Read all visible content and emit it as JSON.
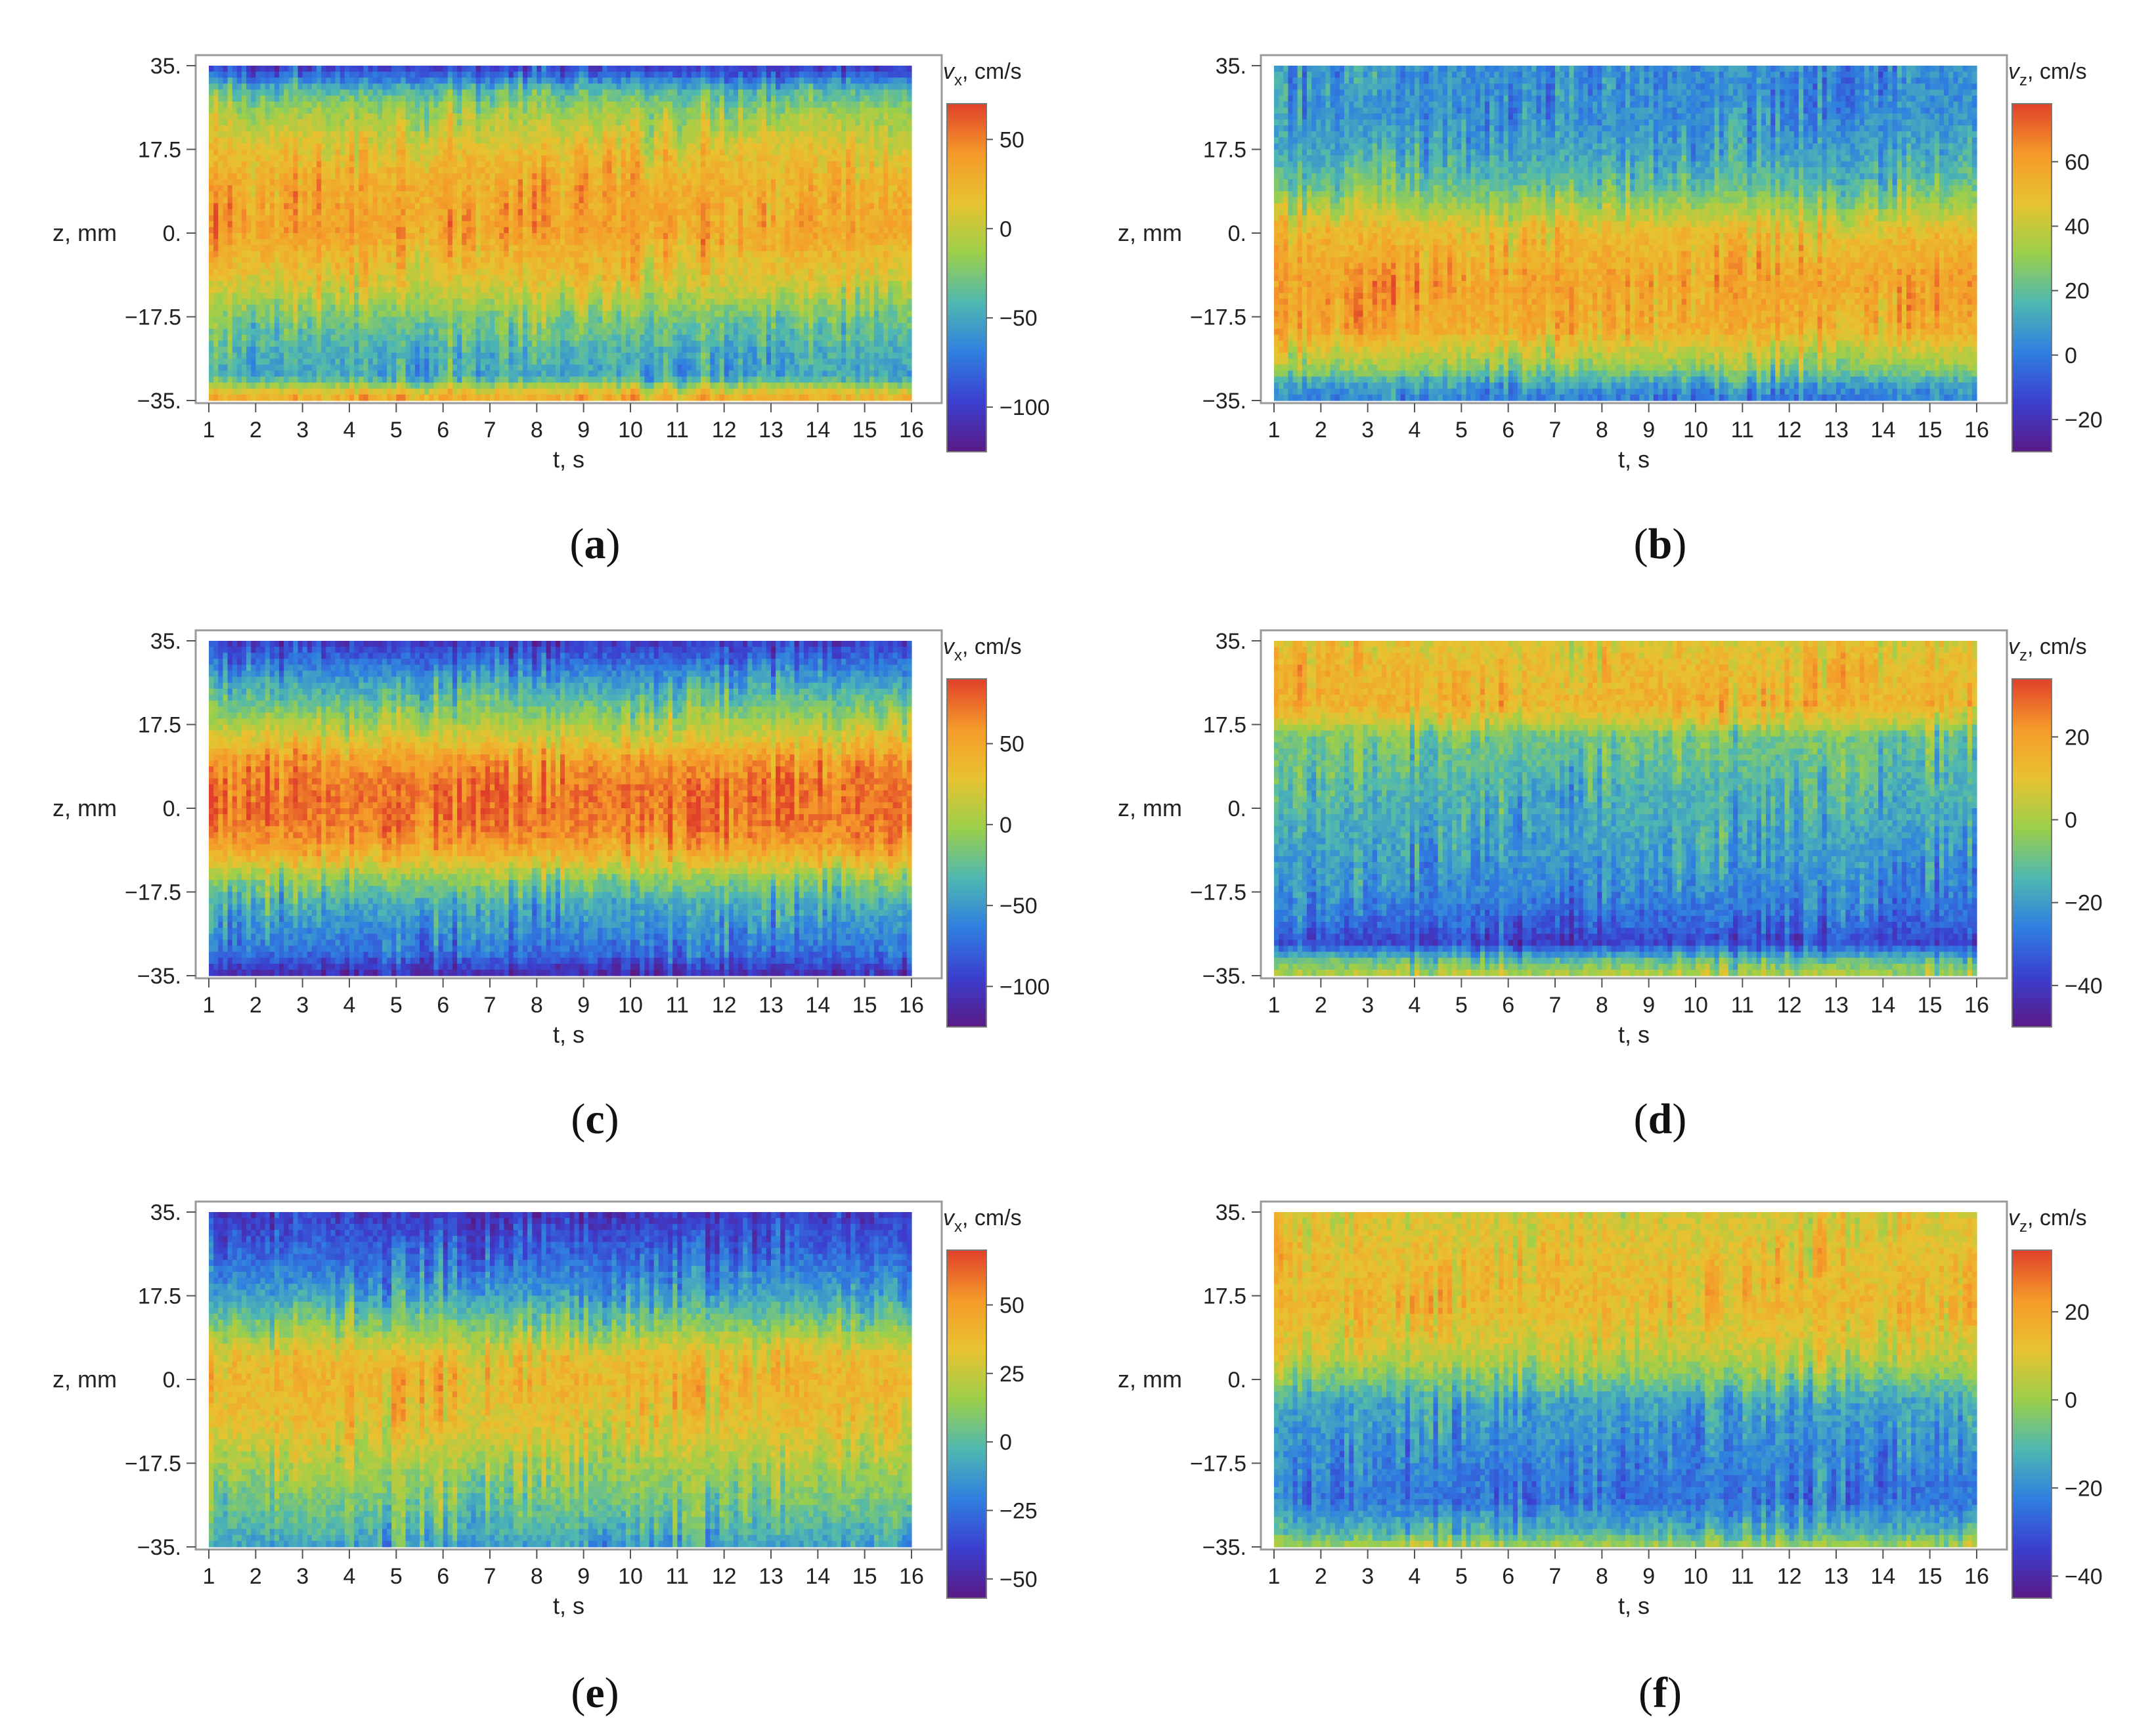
{
  "figure": {
    "captions": [
      "a",
      "b",
      "c",
      "d",
      "e",
      "f"
    ]
  },
  "colormap": {
    "stops": [
      "#5a1a86",
      "#3b3fcf",
      "#2f7fe0",
      "#4fb8b0",
      "#9ccf4a",
      "#e8c230",
      "#f59a2a",
      "#e0402a"
    ]
  },
  "chart_data": [
    {
      "id": "a",
      "type": "heatmap",
      "xlabel": "t, s",
      "ylabel": "z, mm",
      "x_range": [
        1,
        16
      ],
      "y_range": [
        -35,
        35
      ],
      "x_ticks": [
        "1",
        "2",
        "3",
        "4",
        "5",
        "6",
        "7",
        "8",
        "9",
        "10",
        "11",
        "12",
        "13",
        "14",
        "15",
        "16"
      ],
      "y_ticks": [
        "35.",
        "17.5",
        "0.",
        "−17.5",
        "−35."
      ],
      "colorbar_label_var": "v",
      "colorbar_label_sub": "x",
      "colorbar_label_unit": ", cm/s",
      "colorbar_range": [
        -125,
        70
      ],
      "colorbar_ticks": [
        "50",
        "0",
        "−50",
        "−100"
      ],
      "colorbar_tick_values": [
        50,
        0,
        -50,
        -100
      ],
      "profile": [
        [
          -35,
          35
        ],
        [
          -33,
          10
        ],
        [
          -30,
          -50
        ],
        [
          -25,
          -45
        ],
        [
          -17.5,
          -25
        ],
        [
          -10,
          10
        ],
        [
          0,
          35
        ],
        [
          10,
          30
        ],
        [
          17.5,
          15
        ],
        [
          25,
          -10
        ],
        [
          30,
          -40
        ],
        [
          33,
          -80
        ],
        [
          35,
          -100
        ]
      ]
    },
    {
      "id": "b",
      "type": "heatmap",
      "xlabel": "t, s",
      "ylabel": "z, mm",
      "x_range": [
        1,
        16
      ],
      "y_range": [
        -35,
        35
      ],
      "x_ticks": [
        "1",
        "2",
        "3",
        "4",
        "5",
        "6",
        "7",
        "8",
        "9",
        "10",
        "11",
        "12",
        "13",
        "14",
        "15",
        "16"
      ],
      "y_ticks": [
        "35.",
        "17.5",
        "0.",
        "−17.5",
        "−35."
      ],
      "colorbar_label_var": "v",
      "colorbar_label_sub": "z",
      "colorbar_label_unit": ", cm/s",
      "colorbar_range": [
        -30,
        78
      ],
      "colorbar_ticks": [
        "60",
        "40",
        "20",
        "0",
        "−20"
      ],
      "colorbar_tick_values": [
        60,
        40,
        20,
        0,
        -20
      ],
      "profile": [
        [
          -35,
          0
        ],
        [
          -32,
          8
        ],
        [
          -28,
          30
        ],
        [
          -20,
          55
        ],
        [
          -10,
          58
        ],
        [
          0,
          50
        ],
        [
          5,
          35
        ],
        [
          10,
          20
        ],
        [
          17.5,
          10
        ],
        [
          25,
          5
        ],
        [
          35,
          5
        ]
      ]
    },
    {
      "id": "c",
      "type": "heatmap",
      "xlabel": "t, s",
      "ylabel": "z, mm",
      "x_range": [
        1,
        16
      ],
      "y_range": [
        -35,
        35
      ],
      "x_ticks": [
        "1",
        "2",
        "3",
        "4",
        "5",
        "6",
        "7",
        "8",
        "9",
        "10",
        "11",
        "12",
        "13",
        "14",
        "15",
        "16"
      ],
      "y_ticks": [
        "35.",
        "17.5",
        "0.",
        "−17.5",
        "−35."
      ],
      "colorbar_label_var": "v",
      "colorbar_label_sub": "x",
      "colorbar_label_unit": ", cm/s",
      "colorbar_range": [
        -125,
        90
      ],
      "colorbar_ticks": [
        "50",
        "0",
        "−50",
        "−100"
      ],
      "colorbar_tick_values": [
        50,
        0,
        -50,
        -100
      ],
      "profile": [
        [
          -35,
          -110
        ],
        [
          -30,
          -70
        ],
        [
          -20,
          -40
        ],
        [
          -15,
          -10
        ],
        [
          -10,
          40
        ],
        [
          -5,
          65
        ],
        [
          0,
          72
        ],
        [
          5,
          70
        ],
        [
          10,
          55
        ],
        [
          15,
          20
        ],
        [
          20,
          -10
        ],
        [
          28,
          -55
        ],
        [
          35,
          -100
        ]
      ]
    },
    {
      "id": "d",
      "type": "heatmap",
      "xlabel": "t, s",
      "ylabel": "z, mm",
      "x_range": [
        1,
        16
      ],
      "y_range": [
        -35,
        35
      ],
      "x_ticks": [
        "1",
        "2",
        "3",
        "4",
        "5",
        "6",
        "7",
        "8",
        "9",
        "10",
        "11",
        "12",
        "13",
        "14",
        "15",
        "16"
      ],
      "y_ticks": [
        "35.",
        "17.5",
        "0.",
        "−17.5",
        "−35."
      ],
      "colorbar_label_var": "v",
      "colorbar_label_sub": "z",
      "colorbar_label_unit": ", cm/s",
      "colorbar_range": [
        -50,
        34
      ],
      "colorbar_ticks": [
        "20",
        "0",
        "−20",
        "−40"
      ],
      "colorbar_tick_values": [
        20,
        0,
        -20,
        -40
      ],
      "profile": [
        [
          -35,
          2
        ],
        [
          -32,
          -10
        ],
        [
          -28,
          -38
        ],
        [
          -25,
          -32
        ],
        [
          -17.5,
          -24
        ],
        [
          -5,
          -18
        ],
        [
          5,
          -14
        ],
        [
          15,
          -8
        ],
        [
          18,
          5
        ],
        [
          22,
          15
        ],
        [
          30,
          12
        ],
        [
          35,
          8
        ]
      ]
    },
    {
      "id": "e",
      "type": "heatmap",
      "xlabel": "t, s",
      "ylabel": "z, mm",
      "x_range": [
        1,
        16
      ],
      "y_range": [
        -35,
        35
      ],
      "x_ticks": [
        "1",
        "2",
        "3",
        "4",
        "5",
        "6",
        "7",
        "8",
        "9",
        "10",
        "11",
        "12",
        "13",
        "14",
        "15",
        "16"
      ],
      "y_ticks": [
        "35.",
        "17.5",
        "0.",
        "−17.5",
        "−35."
      ],
      "colorbar_label_var": "v",
      "colorbar_label_sub": "x",
      "colorbar_label_unit": ", cm/s",
      "colorbar_range": [
        -57,
        70
      ],
      "colorbar_ticks": [
        "50",
        "25",
        "0",
        "−25",
        "−50"
      ],
      "colorbar_tick_values": [
        50,
        25,
        0,
        -25,
        -50
      ],
      "profile": [
        [
          -35,
          -10
        ],
        [
          -30,
          0
        ],
        [
          -20,
          15
        ],
        [
          -10,
          32
        ],
        [
          0,
          40
        ],
        [
          5,
          35
        ],
        [
          10,
          15
        ],
        [
          17.5,
          -10
        ],
        [
          25,
          -25
        ],
        [
          35,
          -42
        ]
      ]
    },
    {
      "id": "f",
      "type": "heatmap",
      "xlabel": "t, s",
      "ylabel": "z, mm",
      "x_range": [
        1,
        16
      ],
      "y_range": [
        -35,
        35
      ],
      "x_ticks": [
        "1",
        "2",
        "3",
        "4",
        "5",
        "6",
        "7",
        "8",
        "9",
        "10",
        "11",
        "12",
        "13",
        "14",
        "15",
        "16"
      ],
      "y_ticks": [
        "35.",
        "17.5",
        "0.",
        "−17.5",
        "−35."
      ],
      "colorbar_label_var": "v",
      "colorbar_label_sub": "z",
      "colorbar_label_unit": ", cm/s",
      "colorbar_range": [
        -45,
        34
      ],
      "colorbar_ticks": [
        "20",
        "0",
        "−20",
        "−40"
      ],
      "colorbar_tick_values": [
        20,
        0,
        -20,
        -40
      ],
      "profile": [
        [
          -35,
          2
        ],
        [
          -32,
          -12
        ],
        [
          -25,
          -25
        ],
        [
          -17.5,
          -22
        ],
        [
          -5,
          -16
        ],
        [
          0,
          -5
        ],
        [
          5,
          5
        ],
        [
          15,
          14
        ],
        [
          25,
          12
        ],
        [
          35,
          8
        ]
      ]
    }
  ]
}
